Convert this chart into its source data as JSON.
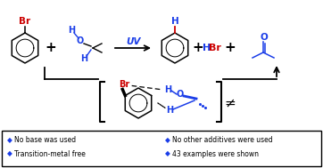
{
  "background_color": "#ffffff",
  "legend_items": [
    "No base was used",
    "Transition-metal free",
    "No other additives were used",
    "43 examples were shown"
  ],
  "legend_bullet_color": "#1a3de8",
  "red_color": "#cc0000",
  "blue_color": "#1a3de8",
  "black_color": "#000000"
}
